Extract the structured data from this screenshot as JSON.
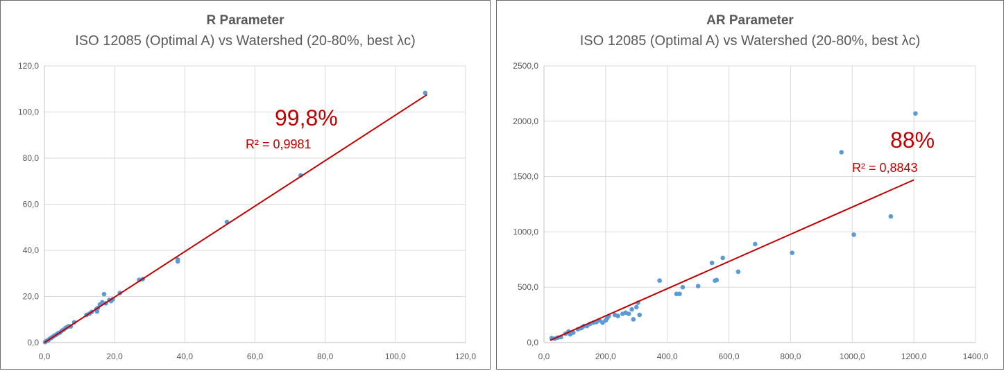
{
  "chart_data": [
    {
      "type": "scatter",
      "title": "R Parameter",
      "subtitle": "ISO 12085 (Optimal A) vs Watershed (20-80%, best λc)",
      "xlim": [
        0,
        120
      ],
      "ylim": [
        0,
        120
      ],
      "x_ticks": [
        "0,0",
        "20,0",
        "40,0",
        "60,0",
        "80,0",
        "100,0",
        "120,0"
      ],
      "y_ticks": [
        "0,0",
        "20,0",
        "40,0",
        "60,0",
        "80,0",
        "100,0",
        "120,0"
      ],
      "grid": true,
      "marker_color": "#5b9bd5",
      "trendline_color": "#c00000",
      "trendline": {
        "x0": 0,
        "y0": 0,
        "x1": 109,
        "y1": 107.5
      },
      "annotation_percent": "99,8%",
      "annotation_r2": "R² = 0,9981",
      "points": [
        [
          0.2,
          0.2
        ],
        [
          0.5,
          0.6
        ],
        [
          0.8,
          0.9
        ],
        [
          1.1,
          1.0
        ],
        [
          1.4,
          1.5
        ],
        [
          1.7,
          1.8
        ],
        [
          2.0,
          2.1
        ],
        [
          2.4,
          2.5
        ],
        [
          2.8,
          3.0
        ],
        [
          3.2,
          3.3
        ],
        [
          3.6,
          3.7
        ],
        [
          4.0,
          4.1
        ],
        [
          4.5,
          4.4
        ],
        [
          5.0,
          5.2
        ],
        [
          5.5,
          5.6
        ],
        [
          6.0,
          6.3
        ],
        [
          6.5,
          6.8
        ],
        [
          7.0,
          7.1
        ],
        [
          7.5,
          7.0
        ],
        [
          8.5,
          8.8
        ],
        [
          12.0,
          12.0
        ],
        [
          12.8,
          12.5
        ],
        [
          13.5,
          13.3
        ],
        [
          14.8,
          14.5
        ],
        [
          15.2,
          15.0
        ],
        [
          15.0,
          13.5
        ],
        [
          15.8,
          16.5
        ],
        [
          16.5,
          17.5
        ],
        [
          17.0,
          21.0
        ],
        [
          17.5,
          17.0
        ],
        [
          18.5,
          18.5
        ],
        [
          19.0,
          18.0
        ],
        [
          19.5,
          18.8
        ],
        [
          21.5,
          21.5
        ],
        [
          27.0,
          27.2
        ],
        [
          28.0,
          27.5
        ],
        [
          38.0,
          35.2
        ],
        [
          38.0,
          36.0
        ],
        [
          52.0,
          52.3
        ],
        [
          73.0,
          72.5
        ],
        [
          108.5,
          108.3
        ]
      ]
    },
    {
      "type": "scatter",
      "title": "AR Parameter",
      "subtitle": "ISO 12085 (Optimal A) vs Watershed (20-80%, best λc)",
      "xlim": [
        0,
        1400
      ],
      "ylim": [
        0,
        2500
      ],
      "x_ticks": [
        "0,0",
        "200,0",
        "400,0",
        "600,0",
        "800,0",
        "1000,0",
        "1200,0",
        "1400,0"
      ],
      "y_ticks": [
        "0,0",
        "500,0",
        "1000,0",
        "1500,0",
        "2000,0",
        "2500,0"
      ],
      "grid": true,
      "marker_color": "#5b9bd5",
      "trendline_color": "#c00000",
      "trendline": {
        "x0": 20,
        "y0": 20,
        "x1": 1200,
        "y1": 1470
      },
      "annotation_percent": "88%",
      "annotation_r2": "R² = 0,8843",
      "points": [
        [
          25,
          40
        ],
        [
          35,
          35
        ],
        [
          45,
          45
        ],
        [
          55,
          50
        ],
        [
          70,
          80
        ],
        [
          80,
          100
        ],
        [
          85,
          75
        ],
        [
          95,
          90
        ],
        [
          110,
          120
        ],
        [
          120,
          130
        ],
        [
          125,
          140
        ],
        [
          130,
          150
        ],
        [
          140,
          150
        ],
        [
          150,
          170
        ],
        [
          160,
          180
        ],
        [
          170,
          185
        ],
        [
          180,
          200
        ],
        [
          190,
          180
        ],
        [
          200,
          200
        ],
        [
          205,
          220
        ],
        [
          210,
          240
        ],
        [
          230,
          250
        ],
        [
          240,
          240
        ],
        [
          255,
          260
        ],
        [
          265,
          270
        ],
        [
          275,
          260
        ],
        [
          285,
          300
        ],
        [
          290,
          210
        ],
        [
          300,
          320
        ],
        [
          305,
          360
        ],
        [
          310,
          250
        ],
        [
          375,
          560
        ],
        [
          430,
          440
        ],
        [
          440,
          440
        ],
        [
          450,
          500
        ],
        [
          500,
          510
        ],
        [
          545,
          720
        ],
        [
          555,
          560
        ],
        [
          560,
          565
        ],
        [
          580,
          765
        ],
        [
          630,
          640
        ],
        [
          685,
          890
        ],
        [
          805,
          810
        ],
        [
          965,
          1720
        ],
        [
          1005,
          975
        ],
        [
          1125,
          1140
        ],
        [
          1205,
          2070
        ]
      ]
    }
  ]
}
